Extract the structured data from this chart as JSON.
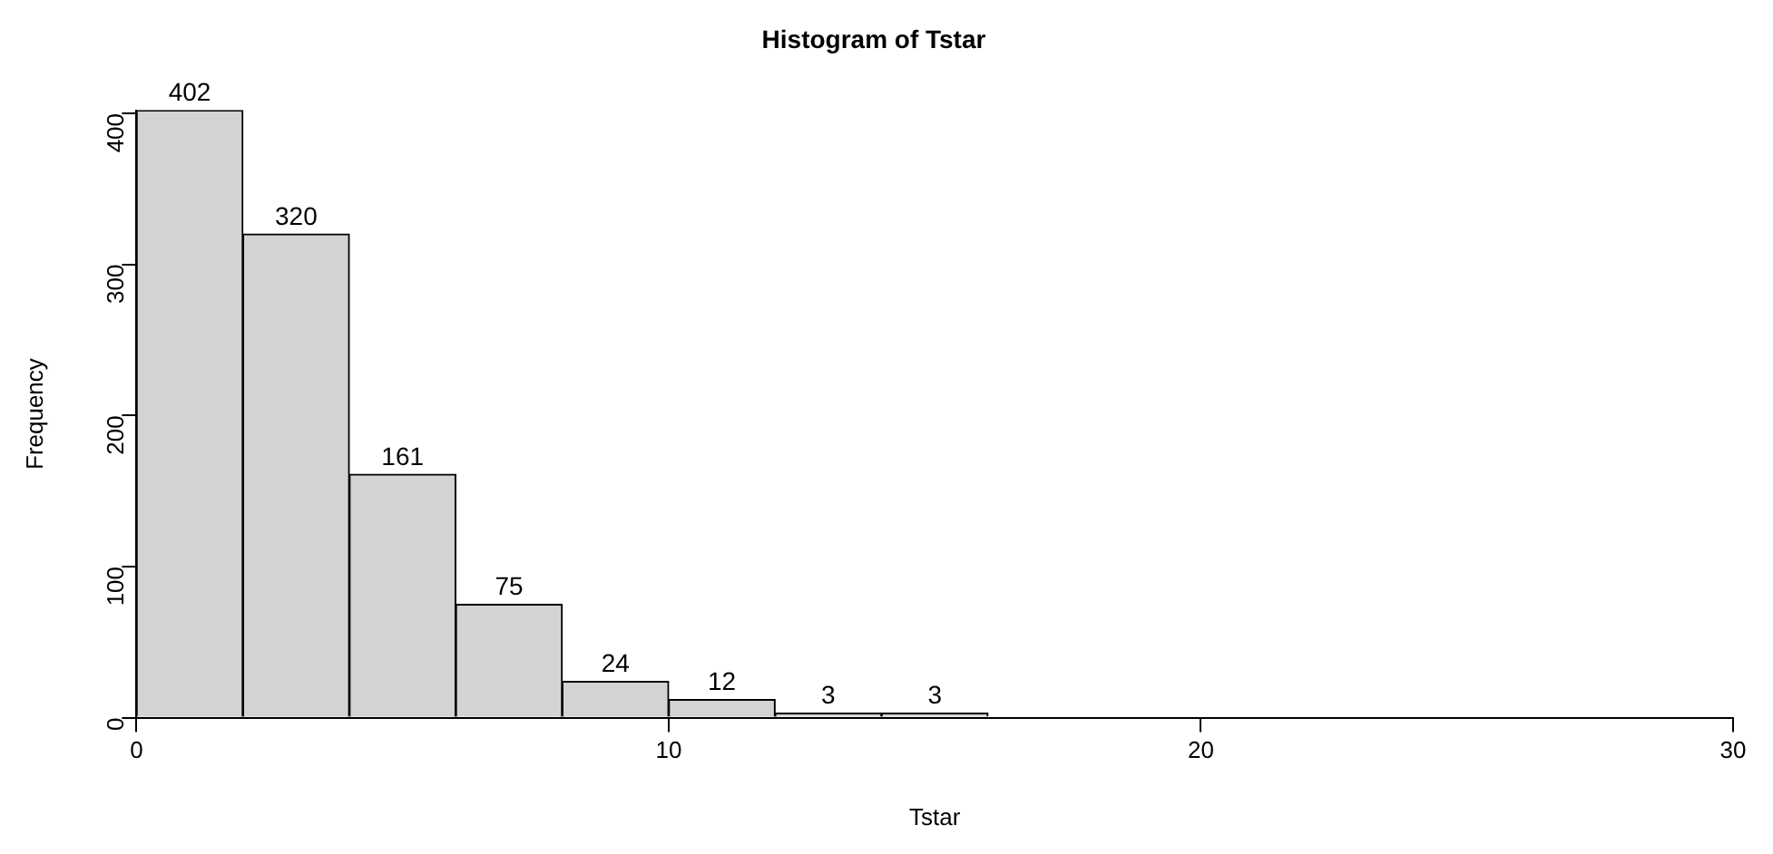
{
  "chart_data": {
    "type": "histogram",
    "title": "Histogram of Tstar",
    "xlabel": "Tstar",
    "ylabel": "Frequency",
    "bins": [
      0,
      2,
      4,
      6,
      8,
      10,
      12,
      14,
      16
    ],
    "values": [
      402,
      320,
      161,
      75,
      24,
      12,
      3,
      3
    ],
    "color": "#d3d3d3",
    "data_labels": true,
    "grid": false,
    "legend": false,
    "xlim": [
      0,
      30
    ],
    "xticks": [
      0,
      10,
      20,
      30
    ],
    "ylim": [
      0,
      402
    ],
    "yticks": [
      0,
      100,
      200,
      300,
      400
    ]
  }
}
